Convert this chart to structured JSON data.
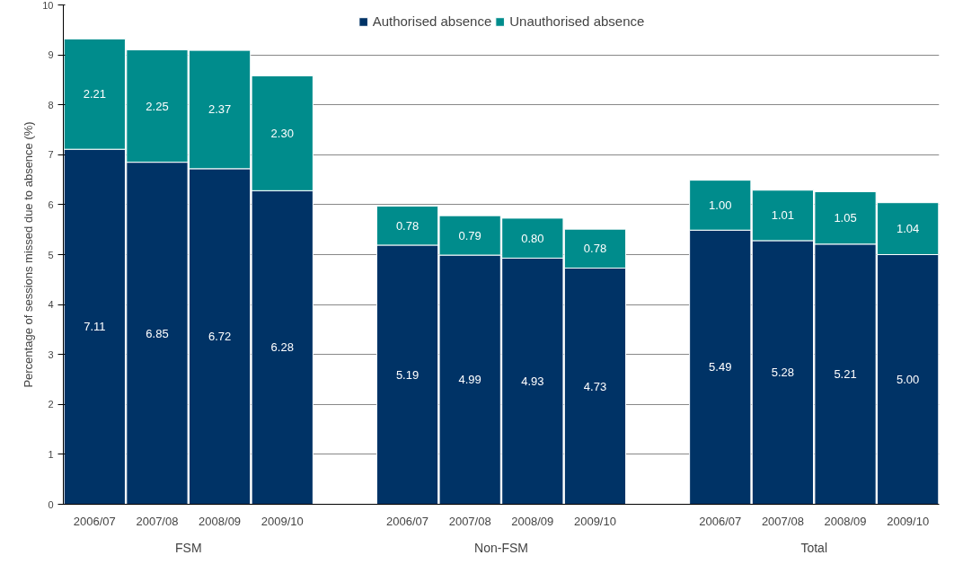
{
  "chart_data": {
    "type": "bar",
    "stacked": true,
    "ylabel": "Percentage of sessions missed due to absence (%)",
    "categories": [
      "2006/07",
      "2007/08",
      "2008/09",
      "2009/10",
      null,
      "2006/07",
      "2007/08",
      "2008/09",
      "2009/10",
      null,
      "2006/07",
      "2007/08",
      "2008/09",
      "2009/10"
    ],
    "series": [
      {
        "name": "Authorised absence",
        "color": "#003366",
        "values": [
          7.11,
          6.85,
          6.72,
          6.28,
          null,
          5.19,
          4.99,
          4.93,
          4.73,
          null,
          5.49,
          5.28,
          5.21,
          5.0
        ],
        "value_labels": [
          "7.11",
          "6.85",
          "6.72",
          "6.28",
          null,
          "5.19",
          "4.99",
          "4.93",
          "4.73",
          null,
          "5.49",
          "5.28",
          "5.21",
          "5.00"
        ]
      },
      {
        "name": "Unauthorised absence",
        "color": "#008c8c",
        "values": [
          2.21,
          2.25,
          2.37,
          2.3,
          null,
          0.78,
          0.79,
          0.8,
          0.78,
          null,
          1.0,
          1.01,
          1.05,
          1.04
        ],
        "value_labels": [
          "2.21",
          "2.25",
          "2.37",
          "2.30",
          null,
          "0.78",
          "0.79",
          "0.80",
          "0.78",
          null,
          "1.00",
          "1.01",
          "1.05",
          "1.04"
        ]
      }
    ],
    "annotations": [
      "FSM",
      "Non-FSM",
      "Total"
    ],
    "ylim": [
      0,
      10
    ],
    "yticks": [
      0,
      1,
      2,
      3,
      4,
      5,
      6,
      7,
      8,
      9,
      10
    ],
    "grid": "y",
    "legend": "top"
  }
}
